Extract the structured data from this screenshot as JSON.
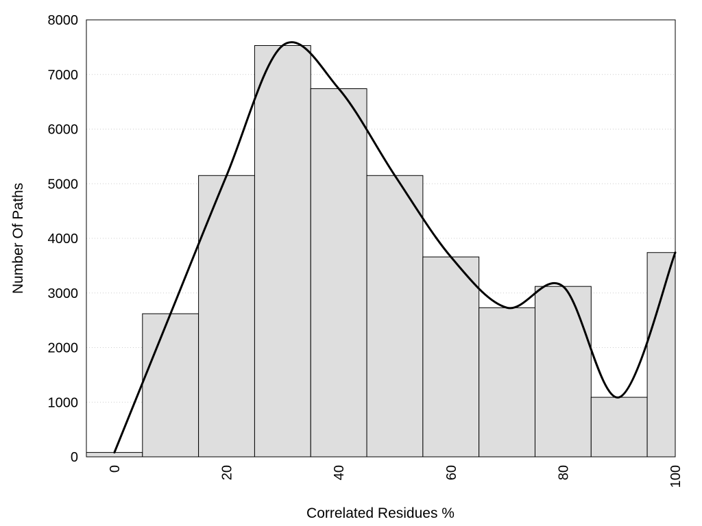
{
  "chart_data": {
    "type": "bar",
    "title": "",
    "xlabel": "Correlated Residues %",
    "ylabel": "Number Of Paths",
    "xlim": [
      -5,
      100
    ],
    "ylim": [
      0,
      8000
    ],
    "bin_width": 10,
    "x_ticks": [
      0,
      20,
      40,
      60,
      80,
      100
    ],
    "y_ticks": [
      0,
      1000,
      2000,
      3000,
      4000,
      5000,
      6000,
      7000,
      8000
    ],
    "grid": "horizontal dotted",
    "categories": [
      0,
      10,
      20,
      30,
      40,
      50,
      60,
      70,
      80,
      90,
      100
    ],
    "values": [
      80,
      2620,
      5150,
      7530,
      6740,
      5150,
      3660,
      2730,
      3120,
      1090,
      3740
    ],
    "curve": {
      "type": "smooth line through bar tops",
      "x": [
        0,
        10,
        20,
        30,
        40,
        50,
        60,
        70,
        80,
        90,
        100
      ],
      "y": [
        80,
        2620,
        5150,
        7530,
        6740,
        5150,
        3660,
        2730,
        3120,
        1090,
        3740
      ]
    },
    "colors": {
      "bar_fill": "#dedede",
      "bar_stroke": "#000000",
      "curve": "#000000",
      "grid": "#cccccc"
    }
  }
}
